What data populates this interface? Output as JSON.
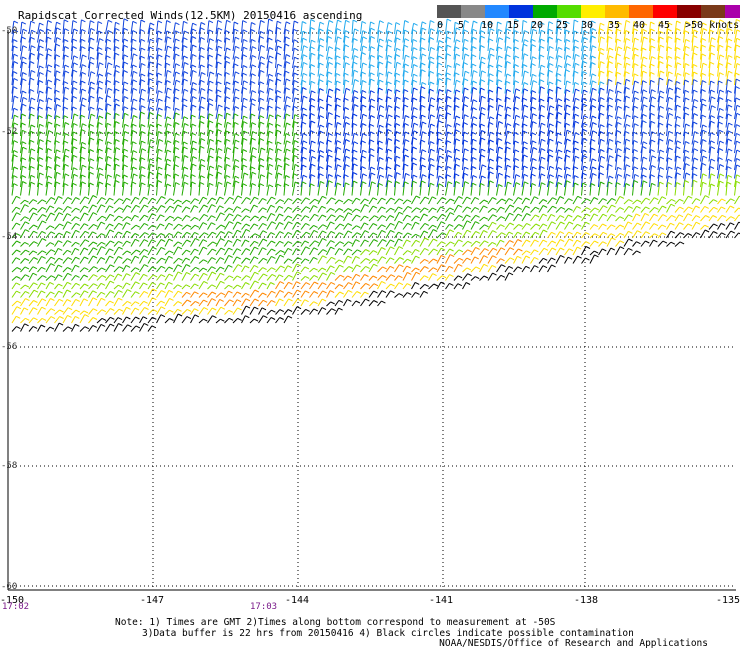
{
  "title": "Rapidscat Corrected Winds(12.5KM) 20150416 ascending",
  "legend": {
    "swatches": [
      {
        "color": "#555555"
      },
      {
        "color": "#888888"
      },
      {
        "color": "#2288ff"
      },
      {
        "color": "#0033dd"
      },
      {
        "color": "#00aa00"
      },
      {
        "color": "#55dd00"
      },
      {
        "color": "#ffee00"
      },
      {
        "color": "#ffbb00"
      },
      {
        "color": "#ff6600"
      },
      {
        "color": "#ff0000"
      },
      {
        "color": "#880000"
      },
      {
        "color": "#7a3a1a"
      },
      {
        "color": "#aa00aa"
      },
      {
        "color": "#7700bb"
      },
      {
        "color": "#440066"
      }
    ],
    "labels": [
      "0",
      "5",
      "10",
      "15",
      "20",
      "25",
      "30",
      "35",
      "40",
      "45",
      ">50 knots"
    ]
  },
  "lat_labels": [
    "-50",
    "-52",
    "-54",
    "-56",
    "-58",
    "-60"
  ],
  "lon_labels": [
    "-150",
    "-147",
    "-144",
    "-141",
    "-138",
    "-135"
  ],
  "time_labels": [
    "17:02",
    "17:03"
  ],
  "notes": [
    "Note: 1) Times are GMT 2)Times along bottom correspond to measurement at -50S",
    "3)Data buffer is 22 hrs from 20150416 4) Black circles indicate possible contamination"
  ],
  "credit": "NOAA/NESDIS/Office of Research and Applications"
}
